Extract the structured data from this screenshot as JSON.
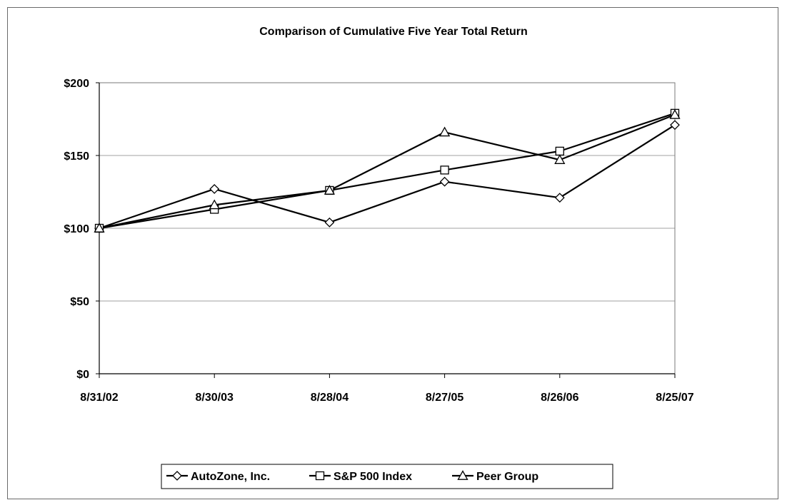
{
  "chart_data": {
    "type": "line",
    "title": "Comparison of Cumulative Five Year Total Return",
    "xlabel": "",
    "ylabel": "",
    "categories": [
      "8/31/02",
      "8/30/03",
      "8/28/04",
      "8/27/05",
      "8/26/06",
      "8/25/07"
    ],
    "y_ticks": [
      "$0",
      "$50",
      "$100",
      "$150",
      "$200"
    ],
    "y_tick_values": [
      0,
      50,
      100,
      150,
      200
    ],
    "ylim": [
      0,
      200
    ],
    "grid": true,
    "legend_position": "bottom",
    "series": [
      {
        "name": "AutoZone, Inc.",
        "marker": "diamond",
        "values": [
          100,
          127,
          104,
          132,
          121,
          171
        ]
      },
      {
        "name": "S&P 500 Index",
        "marker": "square",
        "values": [
          100,
          113,
          126,
          140,
          153,
          179
        ]
      },
      {
        "name": "Peer Group",
        "marker": "triangle",
        "values": [
          100,
          116,
          126,
          166,
          147,
          178
        ]
      }
    ],
    "colors": {
      "line": "#000000",
      "grid": "#a0a0a0",
      "marker_fill": "#ffffff"
    }
  }
}
